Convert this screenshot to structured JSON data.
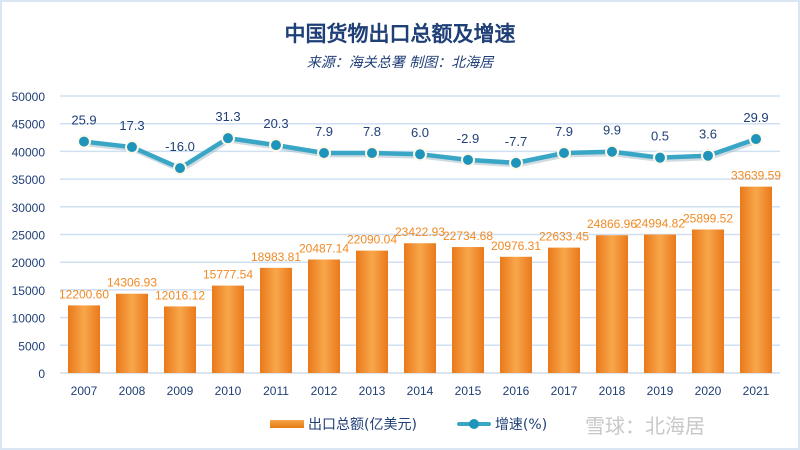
{
  "title": "中国货物出口总额及增速",
  "subtitle": "来源：海关总署  制图：北海居",
  "watermark": "雪球：北海居",
  "colors": {
    "bar": "#f08a24",
    "line": "#3aa6c6",
    "marker": "#1e94bb",
    "text": "#1f3f77",
    "bar_label": "#f08a24",
    "grid": "#cfe0f3"
  },
  "chart_data": {
    "type": "bar+line",
    "categories": [
      "2007",
      "2008",
      "2009",
      "2010",
      "2011",
      "2012",
      "2013",
      "2014",
      "2015",
      "2016",
      "2017",
      "2018",
      "2019",
      "2020",
      "2021"
    ],
    "series": [
      {
        "name": "出口总额(亿美元)",
        "type": "bar",
        "axis": "left",
        "values": [
          12200.6,
          14306.93,
          12016.12,
          15777.54,
          18983.81,
          20487.14,
          22090.04,
          23422.93,
          22734.68,
          20976.31,
          22633.45,
          24866.96,
          24994.82,
          25899.52,
          33639.59
        ],
        "labels": [
          "12200.60",
          "14306.93",
          "12016.12",
          "15777.54",
          "18983.81",
          "20487.14",
          "22090.04",
          "23422.93",
          "22734.68",
          "20976.31",
          "22633.45",
          "24866.96",
          "24994.82",
          "25899.52",
          "33639.59"
        ]
      },
      {
        "name": "增速(%)",
        "type": "line",
        "axis": "right-hidden",
        "values": [
          25.9,
          17.3,
          -16.0,
          31.3,
          20.3,
          7.9,
          7.8,
          6.0,
          -2.9,
          -7.7,
          7.9,
          9.9,
          0.5,
          3.6,
          29.9
        ],
        "labels": [
          "25.9",
          "17.3",
          "-16.0",
          "31.3",
          "20.3",
          "7.9",
          "7.8",
          "6.0",
          "-2.9",
          "-7.7",
          "7.9",
          "9.9",
          "0.5",
          "3.6",
          "29.9"
        ]
      }
    ],
    "ylim": [
      0,
      50000
    ],
    "yticks": [
      "0",
      "5000",
      "10000",
      "15000",
      "20000",
      "25000",
      "30000",
      "35000",
      "40000",
      "45000",
      "50000"
    ],
    "grid": true,
    "legend": "bottom"
  }
}
